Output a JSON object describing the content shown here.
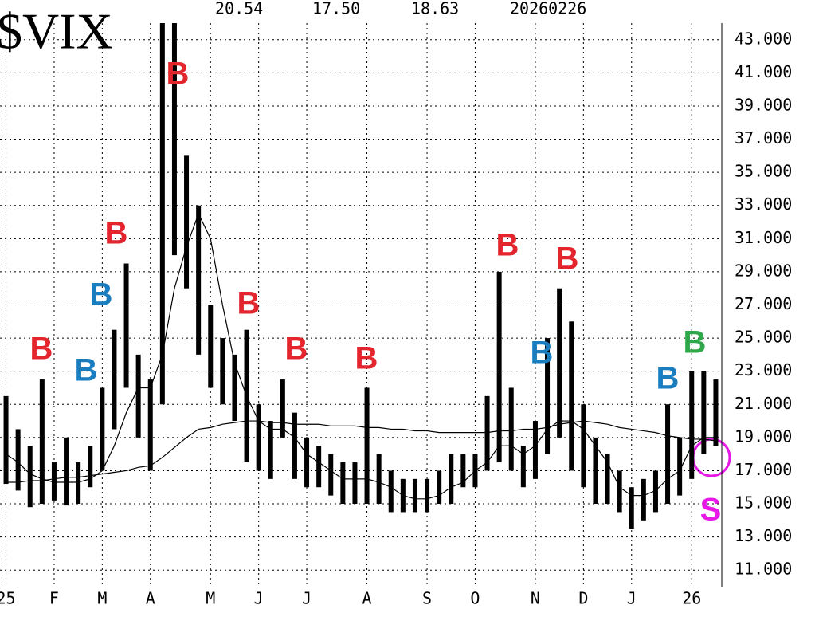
{
  "chart_data": {
    "type": "range-bar",
    "title": "$VIX",
    "header": [
      "20.54",
      "17.50",
      "18.63",
      "20260226"
    ],
    "categories": [
      "25",
      null,
      null,
      null,
      "F",
      null,
      null,
      null,
      "M",
      null,
      null,
      null,
      "A",
      null,
      null,
      null,
      null,
      "M",
      null,
      null,
      null,
      "J",
      null,
      null,
      null,
      "J",
      null,
      null,
      null,
      null,
      "A",
      null,
      null,
      null,
      null,
      "S",
      null,
      null,
      null,
      "O",
      null,
      null,
      null,
      null,
      "N",
      null,
      null,
      null,
      "D",
      null,
      null,
      null,
      "J",
      null,
      null,
      null,
      null,
      "26",
      null,
      null
    ],
    "high": [
      21.5,
      19.5,
      18.5,
      22.5,
      17.5,
      19,
      17.5,
      18.5,
      22,
      25.5,
      29.5,
      24,
      22.5,
      45,
      45,
      36,
      33,
      27,
      25,
      24,
      25.5,
      21,
      20,
      22.5,
      20.5,
      19,
      18.5,
      18,
      17.5,
      17.5,
      22,
      18,
      17,
      16.5,
      16.5,
      16.5,
      17,
      18,
      18,
      18,
      21.5,
      29,
      22,
      18.5,
      20,
      25,
      28,
      26,
      21,
      19,
      18,
      17,
      16,
      16.5,
      17,
      21,
      19,
      23,
      23,
      22.5
    ],
    "low": [
      16.2,
      15.8,
      14.8,
      15,
      15.2,
      14.9,
      15,
      16,
      17,
      19.5,
      22,
      19,
      17,
      21,
      30,
      28,
      24,
      22,
      21,
      20,
      17.5,
      17,
      16.5,
      19,
      16.5,
      16,
      16,
      15.5,
      15,
      15,
      15,
      15,
      14.5,
      14.5,
      14.5,
      14.5,
      15,
      15,
      16,
      16,
      17,
      17.5,
      17,
      16,
      16.5,
      18,
      19,
      17,
      16,
      15,
      15,
      14.5,
      13.5,
      14,
      14.5,
      15,
      15.5,
      16.5,
      18,
      18.5
    ],
    "ma_short": [
      18,
      17.5,
      16.8,
      16.5,
      16.3,
      16.3,
      16.3,
      16.5,
      17,
      18.5,
      20.5,
      22,
      22,
      24,
      28,
      30.5,
      32.5,
      31,
      27,
      23.5,
      21.5,
      20,
      19.5,
      19.5,
      19,
      18,
      17.5,
      17,
      16.5,
      16.5,
      16.5,
      16.3,
      16,
      15.5,
      15.3,
      15.3,
      15.5,
      16,
      16.3,
      17,
      17.5,
      18.5,
      18.5,
      18,
      18.5,
      19.5,
      20,
      20,
      19.5,
      18.5,
      17.5,
      16,
      15.5,
      15.5,
      15.8,
      16.5,
      17,
      18.5,
      19,
      19
    ],
    "ma_long": [
      16.3,
      16.3,
      16.4,
      16.4,
      16.5,
      16.6,
      16.6,
      16.7,
      16.8,
      16.9,
      17,
      17.2,
      17.3,
      17.8,
      18.4,
      19,
      19.5,
      19.6,
      19.8,
      19.9,
      20,
      20,
      19.9,
      19.9,
      19.8,
      19.8,
      19.8,
      19.7,
      19.7,
      19.7,
      19.6,
      19.6,
      19.5,
      19.5,
      19.4,
      19.4,
      19.3,
      19.3,
      19.3,
      19.3,
      19.3,
      19.4,
      19.4,
      19.5,
      19.5,
      19.6,
      19.8,
      19.9,
      20,
      19.9,
      19.8,
      19.6,
      19.5,
      19.4,
      19.3,
      19.1,
      19,
      18.9,
      18.9,
      18.8
    ],
    "color": "#000000",
    "ylim": [
      10,
      44
    ],
    "yticks": [
      {
        "value": 11,
        "label": "11.000"
      },
      {
        "value": 13,
        "label": "13.000"
      },
      {
        "value": 15,
        "label": "15.000"
      },
      {
        "value": 17,
        "label": "17.000"
      },
      {
        "value": 19,
        "label": "19.000"
      },
      {
        "value": 21,
        "label": "21.000"
      },
      {
        "value": 23,
        "label": "23.000"
      },
      {
        "value": 25,
        "label": "25.000"
      },
      {
        "value": 27,
        "label": "27.000"
      },
      {
        "value": 29,
        "label": "29.000"
      },
      {
        "value": 31,
        "label": "31.000"
      },
      {
        "value": 33,
        "label": "33.000"
      },
      {
        "value": 35,
        "label": "35.000"
      },
      {
        "value": 37,
        "label": "37.000"
      },
      {
        "value": 39,
        "label": "39.000"
      },
      {
        "value": 41,
        "label": "41.000"
      },
      {
        "value": 43,
        "label": "43.000"
      }
    ],
    "grid": true,
    "signals": [
      {
        "text": "B",
        "color": "#e3262e"
      },
      {
        "text": "B",
        "color": "#1a7dbf"
      },
      {
        "text": "B",
        "color": "#1a7dbf"
      },
      {
        "text": "B",
        "color": "#e3262e"
      },
      {
        "text": "B",
        "color": "#e3262e"
      },
      {
        "text": "B",
        "color": "#e3262e"
      },
      {
        "text": "B",
        "color": "#e3262e"
      },
      {
        "text": "B",
        "color": "#e3262e"
      },
      {
        "text": "B",
        "color": "#e3262e"
      },
      {
        "text": "B",
        "color": "#1a7dbf"
      },
      {
        "text": "B",
        "color": "#e3262e"
      },
      {
        "text": "B",
        "color": "#1a7dbf"
      },
      {
        "text": "B",
        "color": "#2ea84a"
      },
      {
        "text": "S",
        "color": "#e619e6"
      }
    ]
  }
}
